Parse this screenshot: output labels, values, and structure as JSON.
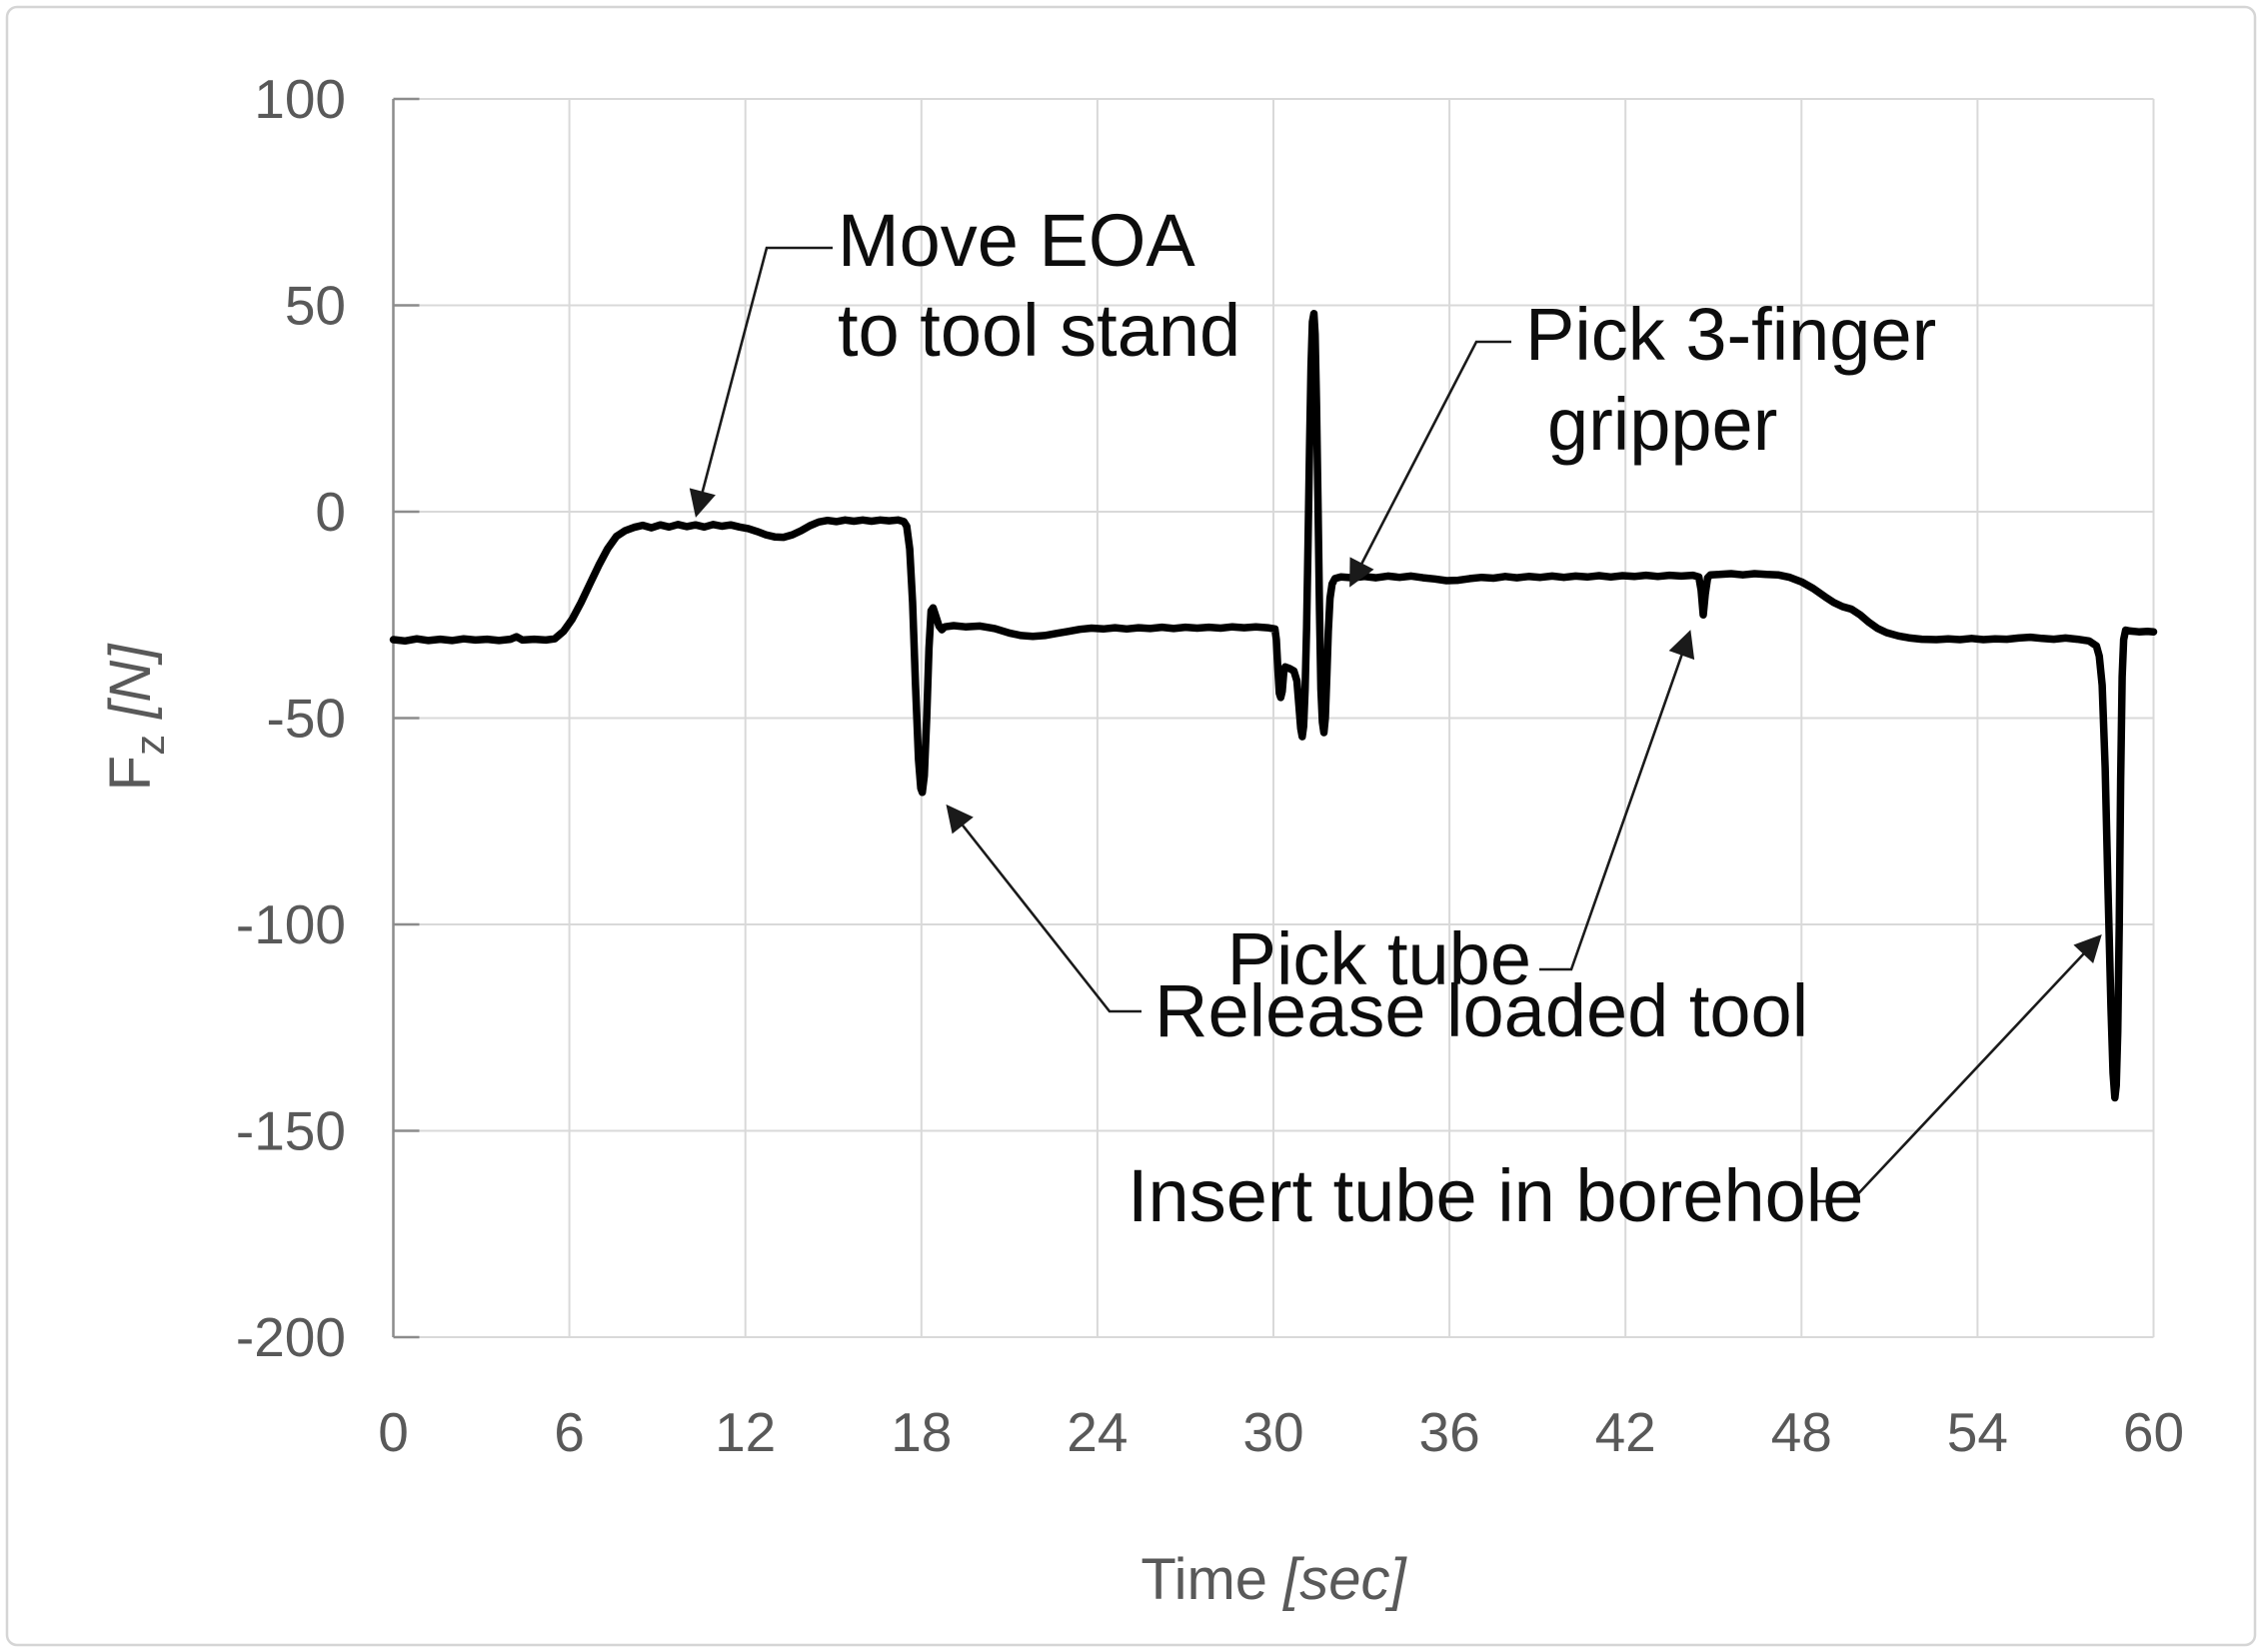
{
  "chart_data": {
    "type": "line",
    "title": "",
    "xlabel_main": "Time ",
    "xlabel_unit": "[sec]",
    "ylabel_main": "F",
    "ylabel_sub": "z",
    "ylabel_unit": " [N]",
    "xlim": [
      0,
      60
    ],
    "ylim": [
      -200,
      100
    ],
    "x_ticks": [
      0,
      6,
      12,
      18,
      24,
      30,
      36,
      42,
      48,
      54,
      60
    ],
    "y_ticks": [
      100,
      50,
      0,
      -50,
      -100,
      -150,
      -200
    ],
    "grid": true,
    "legend": "none",
    "line_color": "#000000",
    "grid_color": "#d9d9d9",
    "tick_label_color": "#595959",
    "series": [
      {
        "name": "Fz",
        "points": [
          [
            0,
            -31
          ],
          [
            0.4,
            -31.3
          ],
          [
            0.8,
            -30.8
          ],
          [
            1.2,
            -31.2
          ],
          [
            1.6,
            -30.9
          ],
          [
            2,
            -31.2
          ],
          [
            2.4,
            -30.8
          ],
          [
            2.8,
            -31.1
          ],
          [
            3.2,
            -30.9
          ],
          [
            3.6,
            -31.2
          ],
          [
            4,
            -30.9
          ],
          [
            4.2,
            -30.3
          ],
          [
            4.4,
            -31.1
          ],
          [
            4.8,
            -30.9
          ],
          [
            5.2,
            -31.1
          ],
          [
            5.5,
            -30.8
          ],
          [
            5.8,
            -29
          ],
          [
            6.1,
            -26
          ],
          [
            6.4,
            -22
          ],
          [
            6.7,
            -17.5
          ],
          [
            7,
            -13
          ],
          [
            7.3,
            -9
          ],
          [
            7.6,
            -6
          ],
          [
            7.9,
            -4.6
          ],
          [
            8.2,
            -3.8
          ],
          [
            8.5,
            -3.3
          ],
          [
            8.8,
            -3.9
          ],
          [
            9.1,
            -3.2
          ],
          [
            9.4,
            -3.7
          ],
          [
            9.7,
            -3.1
          ],
          [
            10,
            -3.6
          ],
          [
            10.3,
            -3.2
          ],
          [
            10.6,
            -3.7
          ],
          [
            10.9,
            -3.1
          ],
          [
            11.2,
            -3.5
          ],
          [
            11.5,
            -3.2
          ],
          [
            11.8,
            -3.7
          ],
          [
            12.1,
            -4.1
          ],
          [
            12.4,
            -4.8
          ],
          [
            12.7,
            -5.6
          ],
          [
            13,
            -6.1
          ],
          [
            13.3,
            -6.2
          ],
          [
            13.6,
            -5.6
          ],
          [
            13.9,
            -4.6
          ],
          [
            14.2,
            -3.4
          ],
          [
            14.5,
            -2.5
          ],
          [
            14.8,
            -2.1
          ],
          [
            15.1,
            -2.4
          ],
          [
            15.4,
            -2
          ],
          [
            15.7,
            -2.3
          ],
          [
            16,
            -2
          ],
          [
            16.3,
            -2.3
          ],
          [
            16.6,
            -2
          ],
          [
            16.9,
            -2.2
          ],
          [
            17.2,
            -2
          ],
          [
            17.4,
            -2.4
          ],
          [
            17.5,
            -3.5
          ],
          [
            17.6,
            -9
          ],
          [
            17.7,
            -22
          ],
          [
            17.8,
            -42
          ],
          [
            17.9,
            -60
          ],
          [
            17.98,
            -67
          ],
          [
            18.03,
            -68
          ],
          [
            18.1,
            -64
          ],
          [
            18.18,
            -50
          ],
          [
            18.26,
            -33
          ],
          [
            18.33,
            -24
          ],
          [
            18.4,
            -23.3
          ],
          [
            18.5,
            -25.5
          ],
          [
            18.6,
            -27.7
          ],
          [
            18.7,
            -28.6
          ],
          [
            18.8,
            -27.9
          ],
          [
            19.1,
            -27.6
          ],
          [
            19.5,
            -27.9
          ],
          [
            20,
            -27.7
          ],
          [
            20.5,
            -28.3
          ],
          [
            21,
            -29.4
          ],
          [
            21.4,
            -30
          ],
          [
            21.8,
            -30.2
          ],
          [
            22.2,
            -30
          ],
          [
            22.6,
            -29.5
          ],
          [
            23,
            -29
          ],
          [
            23.4,
            -28.5
          ],
          [
            23.8,
            -28.2
          ],
          [
            24.2,
            -28.4
          ],
          [
            24.6,
            -28.1
          ],
          [
            25,
            -28.4
          ],
          [
            25.4,
            -28.1
          ],
          [
            25.8,
            -28.3
          ],
          [
            26.2,
            -28
          ],
          [
            26.6,
            -28.3
          ],
          [
            27,
            -28
          ],
          [
            27.4,
            -28.2
          ],
          [
            27.8,
            -28
          ],
          [
            28.2,
            -28.2
          ],
          [
            28.6,
            -27.9
          ],
          [
            29,
            -28.1
          ],
          [
            29.4,
            -27.9
          ],
          [
            29.8,
            -28.1
          ],
          [
            30.05,
            -28.4
          ],
          [
            30.1,
            -31
          ],
          [
            30.15,
            -38
          ],
          [
            30.2,
            -44
          ],
          [
            30.25,
            -45
          ],
          [
            30.3,
            -43.5
          ],
          [
            30.35,
            -39
          ],
          [
            30.4,
            -37.6
          ],
          [
            30.55,
            -38
          ],
          [
            30.7,
            -38.6
          ],
          [
            30.8,
            -41
          ],
          [
            30.87,
            -47
          ],
          [
            30.93,
            -52.5
          ],
          [
            30.98,
            -54.5
          ],
          [
            31.03,
            -52
          ],
          [
            31.08,
            -43
          ],
          [
            31.13,
            -28
          ],
          [
            31.18,
            -8
          ],
          [
            31.23,
            15
          ],
          [
            31.28,
            35
          ],
          [
            31.33,
            46
          ],
          [
            31.38,
            48
          ],
          [
            31.42,
            43
          ],
          [
            31.47,
            26
          ],
          [
            31.52,
            2
          ],
          [
            31.57,
            -24
          ],
          [
            31.62,
            -43
          ],
          [
            31.67,
            -51
          ],
          [
            31.72,
            -53.5
          ],
          [
            31.77,
            -50
          ],
          [
            31.82,
            -40
          ],
          [
            31.87,
            -29
          ],
          [
            31.93,
            -21
          ],
          [
            32,
            -17.5
          ],
          [
            32.1,
            -16.2
          ],
          [
            32.3,
            -15.8
          ],
          [
            32.7,
            -16
          ],
          [
            33.1,
            -15.7
          ],
          [
            33.5,
            -16
          ],
          [
            33.9,
            -15.6
          ],
          [
            34.3,
            -15.9
          ],
          [
            34.7,
            -15.6
          ],
          [
            35.1,
            -16
          ],
          [
            35.5,
            -16.3
          ],
          [
            35.9,
            -16.7
          ],
          [
            36.3,
            -16.6
          ],
          [
            36.7,
            -16.2
          ],
          [
            37.1,
            -15.9
          ],
          [
            37.5,
            -16.1
          ],
          [
            37.9,
            -15.7
          ],
          [
            38.3,
            -16
          ],
          [
            38.7,
            -15.7
          ],
          [
            39.1,
            -15.9
          ],
          [
            39.5,
            -15.6
          ],
          [
            39.9,
            -15.9
          ],
          [
            40.3,
            -15.6
          ],
          [
            40.7,
            -15.8
          ],
          [
            41.1,
            -15.5
          ],
          [
            41.5,
            -15.8
          ],
          [
            41.9,
            -15.5
          ],
          [
            42.3,
            -15.7
          ],
          [
            42.7,
            -15.4
          ],
          [
            43.1,
            -15.7
          ],
          [
            43.5,
            -15.4
          ],
          [
            43.9,
            -15.6
          ],
          [
            44.3,
            -15.4
          ],
          [
            44.5,
            -15.8
          ],
          [
            44.58,
            -19
          ],
          [
            44.65,
            -25
          ],
          [
            44.72,
            -20
          ],
          [
            44.8,
            -16
          ],
          [
            44.9,
            -15.3
          ],
          [
            45.2,
            -15.2
          ],
          [
            45.6,
            -15
          ],
          [
            46,
            -15.3
          ],
          [
            46.4,
            -15
          ],
          [
            46.8,
            -15.2
          ],
          [
            47.2,
            -15.3
          ],
          [
            47.6,
            -15.9
          ],
          [
            48,
            -17
          ],
          [
            48.4,
            -18.6
          ],
          [
            48.8,
            -20.6
          ],
          [
            49.1,
            -22
          ],
          [
            49.4,
            -23
          ],
          [
            49.7,
            -23.6
          ],
          [
            50,
            -25
          ],
          [
            50.3,
            -26.8
          ],
          [
            50.6,
            -28.3
          ],
          [
            50.9,
            -29.3
          ],
          [
            51.3,
            -30.1
          ],
          [
            51.7,
            -30.6
          ],
          [
            52.1,
            -30.9
          ],
          [
            52.6,
            -31
          ],
          [
            53,
            -30.8
          ],
          [
            53.4,
            -31
          ],
          [
            53.8,
            -30.7
          ],
          [
            54.2,
            -31
          ],
          [
            54.6,
            -30.8
          ],
          [
            55,
            -30.9
          ],
          [
            55.4,
            -30.6
          ],
          [
            55.8,
            -30.4
          ],
          [
            56.2,
            -30.7
          ],
          [
            56.6,
            -30.9
          ],
          [
            57,
            -30.6
          ],
          [
            57.4,
            -30.9
          ],
          [
            57.8,
            -31.3
          ],
          [
            58.05,
            -32.5
          ],
          [
            58.15,
            -35
          ],
          [
            58.25,
            -42
          ],
          [
            58.35,
            -62
          ],
          [
            58.45,
            -92
          ],
          [
            58.55,
            -120
          ],
          [
            58.62,
            -136
          ],
          [
            58.68,
            -142
          ],
          [
            58.73,
            -139
          ],
          [
            58.78,
            -126
          ],
          [
            58.83,
            -100
          ],
          [
            58.88,
            -65
          ],
          [
            58.93,
            -40
          ],
          [
            58.98,
            -31
          ],
          [
            59.05,
            -28.7
          ],
          [
            59.2,
            -28.9
          ],
          [
            59.5,
            -29.1
          ],
          [
            59.8,
            -29
          ],
          [
            60,
            -29.1
          ]
        ]
      }
    ],
    "annotations": [
      {
        "id": "move-eoa",
        "lines": [
          "Move EOA",
          "to tool stand"
        ],
        "points_to_time_sec": 10.2,
        "points_to_value_n": -3
      },
      {
        "id": "pick-3-finger-gripper",
        "lines": [
          "Pick 3-finger",
          "gripper"
        ],
        "points_to_time_sec": 32.5,
        "points_to_value_n": -16
      },
      {
        "id": "pick-tube",
        "lines": [
          "Pick tube"
        ],
        "points_to_time_sec": 44.6,
        "points_to_value_n": -25
      },
      {
        "id": "release-loaded-tool",
        "lines": [
          "Release loaded tool"
        ],
        "points_to_time_sec": 18,
        "points_to_value_n": -68
      },
      {
        "id": "insert-tube-in-borehole",
        "lines": [
          "Insert tube in borehole"
        ],
        "points_to_time_sec": 58.7,
        "points_to_value_n": -142
      }
    ]
  }
}
